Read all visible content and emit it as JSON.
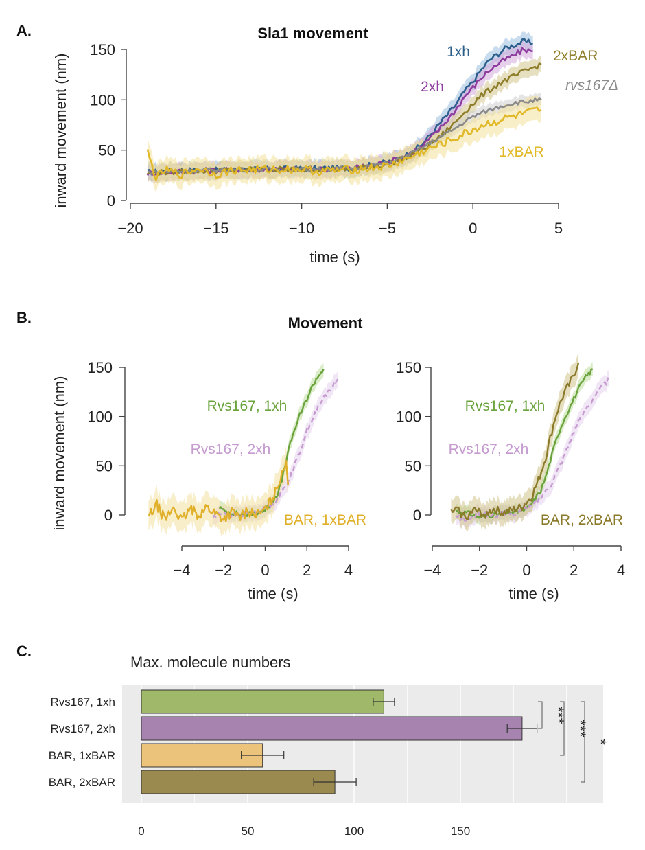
{
  "panels": [
    {
      "id": "A",
      "letter": "A.",
      "chart_data": {
        "type": "line",
        "title": "Sla1 movement",
        "xlabel": "time (s)",
        "ylabel": "inward movement (nm)",
        "xlim": [
          -20,
          5
        ],
        "ylim": [
          0,
          160
        ],
        "xticks": [
          -20,
          -15,
          -10,
          -5,
          0,
          5
        ],
        "xtick_labels": [
          "−20",
          "−15",
          "−10",
          "−5",
          "0",
          "5"
        ],
        "yticks": [
          0,
          50,
          100,
          150
        ],
        "ytick_labels": [
          "0",
          "50",
          "100",
          "150"
        ],
        "series": [
          {
            "name": "1xh",
            "color": "#2c5f8c",
            "band_color": "#9dbfe0",
            "band": 8,
            "x": [
              -19,
              -17,
              -15,
              -12,
              -9,
              -7,
              -5,
              -4,
              -3,
              -2,
              -1,
              -0.5,
              0,
              0.5,
              1,
              1.5,
              2,
              2.5,
              3,
              3.5
            ],
            "y": [
              28,
              30,
              30,
              31,
              32,
              32,
              38,
              44,
              55,
              75,
              95,
              108,
              118,
              130,
              140,
              146,
              152,
              155,
              158,
              156
            ]
          },
          {
            "name": "2xh",
            "color": "#8e3d9e",
            "band_color": "#d3a9db",
            "band": 8,
            "x": [
              -19,
              -17,
              -15,
              -12,
              -9,
              -7,
              -5,
              -4,
              -3,
              -2,
              -1,
              -0.5,
              0,
              0.5,
              1,
              1.5,
              2,
              2.5,
              3,
              3.5
            ],
            "y": [
              27,
              29,
              30,
              31,
              31,
              32,
              38,
              44,
              53,
              70,
              90,
              103,
              112,
              122,
              130,
              136,
              141,
              145,
              150,
              148
            ]
          },
          {
            "name": "2xBAR",
            "color": "#8f7e2c",
            "band_color": "#d2c68c",
            "band": 8,
            "x": [
              -19,
              -17,
              -15,
              -12,
              -9,
              -7,
              -5,
              -4,
              -3,
              -2,
              -1,
              -0.5,
              0,
              0.5,
              1,
              1.5,
              2,
              2.5,
              3,
              3.5,
              4
            ],
            "y": [
              27,
              29,
              30,
              31,
              31,
              31,
              36,
              42,
              50,
              62,
              78,
              88,
              96,
              104,
              110,
              116,
              120,
              124,
              128,
              132,
              135
            ]
          },
          {
            "name": "rvs167Δ",
            "color": "#8a8a8a",
            "band_color": "#cfcfcf",
            "band": 6,
            "x": [
              -19,
              -17,
              -15,
              -12,
              -9,
              -7,
              -5,
              -4,
              -3,
              -2,
              -1,
              -0.5,
              0,
              0.5,
              1,
              1.5,
              2,
              2.5,
              3,
              3.5,
              4
            ],
            "y": [
              28,
              29,
              30,
              31,
              31,
              32,
              37,
              43,
              52,
              62,
              72,
              78,
              83,
              87,
              90,
              93,
              95,
              97,
              98,
              99,
              100
            ]
          },
          {
            "name": "1xBAR",
            "color": "#e0b828",
            "band_color": "#f3e29a",
            "band": 12,
            "x": [
              -19,
              -18.5,
              -18,
              -17,
              -16,
              -15,
              -14,
              -12,
              -10,
              -9,
              -7,
              -5,
              -4,
              -3,
              -2,
              -1,
              -0.5,
              0,
              0.5,
              1,
              1.5,
              2,
              2.5,
              3,
              3.5,
              4
            ],
            "y": [
              48,
              22,
              30,
              26,
              32,
              26,
              30,
              31,
              31,
              29,
              31,
              34,
              40,
              48,
              55,
              62,
              66,
              70,
              74,
              77,
              79,
              82,
              84,
              86,
              88,
              90
            ]
          }
        ]
      }
    },
    {
      "id": "B1",
      "letter": "B.",
      "title": "Movement",
      "chart_data": {
        "type": "line",
        "xlabel": "time (s)",
        "ylabel": "inward movement (nm)",
        "xlim": [
          -5,
          4
        ],
        "ylim": [
          -10,
          160
        ],
        "xticks": [
          -4,
          -2,
          0,
          2,
          4
        ],
        "xtick_labels": [
          "−4",
          "−2",
          "0",
          "2",
          "4"
        ],
        "yticks": [
          0,
          50,
          100,
          150
        ],
        "ytick_labels": [
          "0",
          "50",
          "100",
          "150"
        ],
        "series": [
          {
            "name": "Rvs167, 1xh",
            "color": "#6aa23b",
            "band_color": "#bddc9c",
            "band": 7,
            "x": [
              -2.2,
              -2,
              -1.5,
              -1,
              -0.5,
              0,
              0.3,
              0.6,
              0.8,
              1,
              1.2,
              1.4,
              1.6,
              1.8,
              2,
              2.2,
              2.5,
              2.8
            ],
            "y": [
              8,
              4,
              2,
              0,
              2,
              5,
              12,
              22,
              35,
              55,
              72,
              86,
              98,
              108,
              118,
              128,
              140,
              148
            ]
          },
          {
            "name": "Rvs167, 2xh",
            "color": "#c59bd0",
            "band_color": "#e6d1ec",
            "band": 8,
            "dashed": true,
            "x": [
              -2.5,
              -2,
              -1.5,
              -1,
              -0.5,
              0,
              0.5,
              1,
              1.5,
              2,
              2.5,
              3,
              3.5
            ],
            "y": [
              -2,
              2,
              0,
              1,
              2,
              6,
              15,
              30,
              55,
              85,
              108,
              125,
              138
            ]
          },
          {
            "name": "BAR, 1xBAR",
            "color": "#e0b02a",
            "band_color": "#f3e09f",
            "band": 15,
            "x": [
              -5.6,
              -5.2,
              -4.8,
              -4.4,
              -4,
              -3.6,
              -3.2,
              -2.8,
              -2.4,
              -2,
              -1.6,
              -1.2,
              -0.8,
              -0.4,
              0,
              0.3,
              0.6,
              0.8,
              1,
              1.1
            ],
            "y": [
              -2,
              10,
              -5,
              8,
              -6,
              6,
              0,
              8,
              2,
              -4,
              3,
              -2,
              4,
              0,
              5,
              15,
              28,
              45,
              55,
              30
            ]
          }
        ]
      }
    },
    {
      "id": "B2",
      "chart_data": {
        "type": "line",
        "xlabel": "time (s)",
        "xlim": [
          -4,
          4
        ],
        "ylim": [
          -10,
          160
        ],
        "xticks": [
          -4,
          -2,
          0,
          2,
          4
        ],
        "xtick_labels": [
          "−4",
          "−2",
          "0",
          "2",
          "4"
        ],
        "yticks": [
          0,
          50,
          100,
          150
        ],
        "ytick_labels": [
          "0",
          "50",
          "100",
          "150"
        ],
        "series": [
          {
            "name": "Rvs167, 1xh",
            "color": "#6aa23b",
            "band_color": "#bddc9c",
            "band": 7,
            "x": [
              -3,
              -2.5,
              -2,
              -1.5,
              -1,
              -0.5,
              0,
              0.3,
              0.6,
              0.8,
              1,
              1.2,
              1.4,
              1.6,
              1.8,
              2,
              2.2,
              2.5,
              2.8
            ],
            "y": [
              4,
              2,
              -2,
              0,
              2,
              3,
              6,
              14,
              25,
              38,
              55,
              72,
              86,
              98,
              108,
              118,
              128,
              140,
              148
            ]
          },
          {
            "name": "Rvs167, 2xh",
            "color": "#c59bd0",
            "band_color": "#e6d1ec",
            "band": 8,
            "dashed": true,
            "x": [
              -3,
              -2.5,
              -2,
              -1.5,
              -1,
              -0.5,
              0,
              0.5,
              1,
              1.5,
              2,
              2.5,
              3,
              3.5
            ],
            "y": [
              -2,
              -5,
              2,
              0,
              1,
              2,
              6,
              15,
              30,
              55,
              85,
              108,
              125,
              138
            ]
          },
          {
            "name": "BAR, 2xBAR",
            "color": "#8a7a2a",
            "band_color": "#cfc38a",
            "band": 12,
            "x": [
              -3.2,
              -3,
              -2.6,
              -2.2,
              -1.8,
              -1.4,
              -1,
              -0.6,
              -0.2,
              0.2,
              0.5,
              0.8,
              1,
              1.2,
              1.4,
              1.6,
              1.8,
              2,
              2.2
            ],
            "y": [
              2,
              6,
              -2,
              5,
              0,
              6,
              2,
              5,
              8,
              18,
              35,
              58,
              78,
              98,
              112,
              124,
              132,
              142,
              155
            ]
          }
        ]
      }
    },
    {
      "id": "C",
      "letter": "C.",
      "chart_data": {
        "type": "bar",
        "orientation": "horizontal",
        "title": "Max. molecule numbers",
        "categories": [
          "Rvs167, 1xh",
          "Rvs167, 2xh",
          "BAR, 1xBAR",
          "BAR, 2xBAR"
        ],
        "values": [
          114,
          179,
          57,
          91
        ],
        "errors": [
          5,
          7,
          10,
          10
        ],
        "colors": [
          "#9fb86a",
          "#a783b0",
          "#ebc37a",
          "#9a8a50"
        ],
        "xlim": [
          -10,
          218
        ],
        "xticks": [
          0,
          50,
          100,
          150
        ],
        "xtick_labels": [
          "0",
          "50",
          "100",
          "150"
        ],
        "grid": true,
        "significance": [
          {
            "label": "***",
            "pair": [
              0,
              1
            ]
          },
          {
            "label": "***",
            "pair": [
              0,
              2
            ]
          },
          {
            "label": "*",
            "pair": [
              0,
              3
            ]
          }
        ]
      }
    }
  ]
}
